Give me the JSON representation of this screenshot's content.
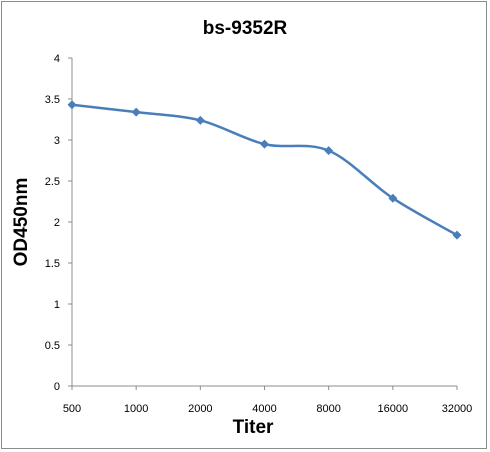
{
  "chart_data": {
    "type": "line",
    "title": "bs-9352R",
    "xlabel": "Titer",
    "ylabel": "OD450nm",
    "categories": [
      "500",
      "1000",
      "2000",
      "4000",
      "8000",
      "16000",
      "32000"
    ],
    "y_ticks": [
      "0",
      "0.5",
      "1",
      "1.5",
      "2",
      "2.5",
      "3",
      "3.5",
      "4"
    ],
    "series": [
      {
        "values": [
          3.43,
          3.34,
          3.24,
          2.95,
          2.87,
          2.29,
          1.84
        ]
      }
    ],
    "ylim": [
      0,
      4
    ],
    "grid": false,
    "legend": "none",
    "line_color": "#4a7ebb",
    "marker": "diamond"
  }
}
